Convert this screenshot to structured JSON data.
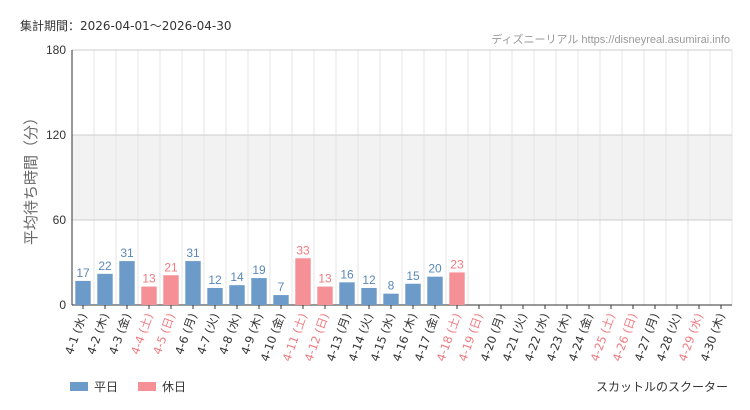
{
  "header": {
    "period_label": "集計期間：2026-04-01～2026-04-30",
    "site_credit": "ディズニーリアル https://disneyreal.asumirai.info"
  },
  "legend": {
    "weekday_label": "平日",
    "holiday_label": "休日"
  },
  "attraction_name": "スカットルのスクーター",
  "colors": {
    "weekday": "#6c9bc9",
    "holiday": "#f59196",
    "weekday_text": "#5a87b8",
    "holiday_text": "#ef7b80",
    "band": "#f2f2f2",
    "grid": "#e6e6e6"
  },
  "chart_data": {
    "type": "bar",
    "ylabel": "平均待ち時間（分）",
    "ylim": [
      0,
      180
    ],
    "yticks": [
      0,
      60,
      120,
      180
    ],
    "categories": [
      "4-1 (水)",
      "4-2 (木)",
      "4-3 (金)",
      "4-4 (土)",
      "4-5 (日)",
      "4-6 (月)",
      "4-7 (火)",
      "4-8 (水)",
      "4-9 (木)",
      "4-10 (金)",
      "4-11 (土)",
      "4-12 (日)",
      "4-13 (月)",
      "4-14 (火)",
      "4-15 (水)",
      "4-16 (木)",
      "4-17 (金)",
      "4-18 (土)",
      "4-19 (日)",
      "4-20 (月)",
      "4-21 (火)",
      "4-22 (水)",
      "4-23 (木)",
      "4-24 (金)",
      "4-25 (土)",
      "4-26 (日)",
      "4-27 (月)",
      "4-28 (火)",
      "4-29 (水)",
      "4-30 (木)"
    ],
    "day_type": [
      "weekday",
      "weekday",
      "weekday",
      "holiday",
      "holiday",
      "weekday",
      "weekday",
      "weekday",
      "weekday",
      "weekday",
      "holiday",
      "holiday",
      "weekday",
      "weekday",
      "weekday",
      "weekday",
      "weekday",
      "holiday",
      "holiday",
      "weekday",
      "weekday",
      "weekday",
      "weekday",
      "weekday",
      "holiday",
      "holiday",
      "weekday",
      "weekday",
      "holiday",
      "weekday"
    ],
    "series": [
      {
        "name": "平均待ち時間",
        "values": [
          17,
          22,
          31,
          13,
          21,
          31,
          12,
          14,
          19,
          7,
          33,
          13,
          16,
          12,
          8,
          15,
          20,
          23,
          null,
          null,
          null,
          null,
          null,
          null,
          null,
          null,
          null,
          null,
          null,
          null
        ]
      }
    ],
    "shaded_band": [
      60,
      120
    ],
    "grid": true,
    "legend_position": "bottom-left"
  }
}
